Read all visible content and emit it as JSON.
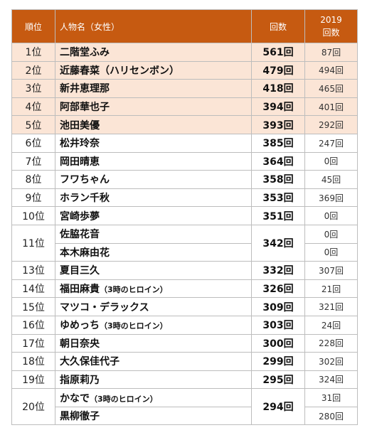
{
  "headers": {
    "rank": "順位",
    "name": "人物名（女性）",
    "count": "回数",
    "prev_line1": "2019",
    "prev_line2": "回数"
  },
  "rows": [
    {
      "rank": "1位",
      "names": [
        {
          "name": "二階堂ふみ",
          "note": "",
          "prev": "87回"
        }
      ],
      "count": "561回",
      "highlight": true
    },
    {
      "rank": "2位",
      "names": [
        {
          "name": "近藤春菜（ハリセンボン）",
          "note": "",
          "prev": "494回"
        }
      ],
      "count": "479回",
      "highlight": true
    },
    {
      "rank": "3位",
      "names": [
        {
          "name": "新井恵理那",
          "note": "",
          "prev": "465回"
        }
      ],
      "count": "418回",
      "highlight": true
    },
    {
      "rank": "4位",
      "names": [
        {
          "name": "阿部華也子",
          "note": "",
          "prev": "401回"
        }
      ],
      "count": "394回",
      "highlight": true
    },
    {
      "rank": "5位",
      "names": [
        {
          "name": "池田美優",
          "note": "",
          "prev": "292回"
        }
      ],
      "count": "393回",
      "highlight": true
    },
    {
      "rank": "6位",
      "names": [
        {
          "name": "松井玲奈",
          "note": "",
          "prev": "247回"
        }
      ],
      "count": "385回",
      "highlight": false
    },
    {
      "rank": "7位",
      "names": [
        {
          "name": "岡田晴恵",
          "note": "",
          "prev": "0回"
        }
      ],
      "count": "364回",
      "highlight": false
    },
    {
      "rank": "8位",
      "names": [
        {
          "name": "フワちゃん",
          "note": "",
          "prev": "45回"
        }
      ],
      "count": "358回",
      "highlight": false
    },
    {
      "rank": "9位",
      "names": [
        {
          "name": "ホラン千秋",
          "note": "",
          "prev": "369回"
        }
      ],
      "count": "353回",
      "highlight": false
    },
    {
      "rank": "10位",
      "names": [
        {
          "name": "宮崎歩夢",
          "note": "",
          "prev": "0回"
        }
      ],
      "count": "351回",
      "highlight": false
    },
    {
      "rank": "11位",
      "names": [
        {
          "name": "佐脇花音",
          "note": "",
          "prev": "0回"
        },
        {
          "name": "本木麻由花",
          "note": "",
          "prev": "0回"
        }
      ],
      "count": "342回",
      "highlight": false
    },
    {
      "rank": "13位",
      "names": [
        {
          "name": "夏目三久",
          "note": "",
          "prev": "307回"
        }
      ],
      "count": "332回",
      "highlight": false
    },
    {
      "rank": "14位",
      "names": [
        {
          "name": "福田麻貴",
          "note": "（3時のヒロイン）",
          "prev": "21回"
        }
      ],
      "count": "326回",
      "highlight": false
    },
    {
      "rank": "15位",
      "names": [
        {
          "name": "マツコ・デラックス",
          "note": "",
          "prev": "321回"
        }
      ],
      "count": "309回",
      "highlight": false
    },
    {
      "rank": "16位",
      "names": [
        {
          "name": "ゆめっち",
          "note": "（3時のヒロイン）",
          "prev": "24回"
        }
      ],
      "count": "303回",
      "highlight": false
    },
    {
      "rank": "17位",
      "names": [
        {
          "name": "朝日奈央",
          "note": "",
          "prev": "228回"
        }
      ],
      "count": "300回",
      "highlight": false
    },
    {
      "rank": "18位",
      "names": [
        {
          "name": "大久保佳代子",
          "note": "",
          "prev": "302回"
        }
      ],
      "count": "299回",
      "highlight": false
    },
    {
      "rank": "19位",
      "names": [
        {
          "name": "指原莉乃",
          "note": "",
          "prev": "324回"
        }
      ],
      "count": "295回",
      "highlight": false
    },
    {
      "rank": "20位",
      "names": [
        {
          "name": "かなで",
          "note": "（3時のヒロイン）",
          "prev": "31回"
        },
        {
          "name": "黒柳徹子",
          "note": "",
          "prev": "280回"
        }
      ],
      "count": "294回",
      "highlight": false
    }
  ],
  "colors": {
    "header_bg": "#c65a11",
    "highlight_bg": "#fbe5d6",
    "border": "#bdbdbd"
  }
}
